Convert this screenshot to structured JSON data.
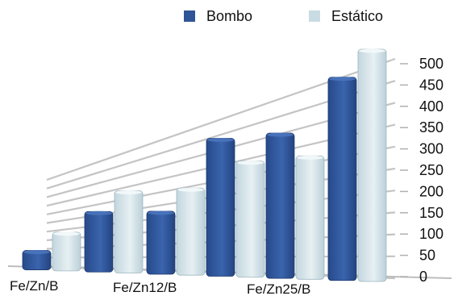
{
  "chart_data": {
    "type": "bar",
    "categories": [
      "Fe/Zn/B",
      "",
      "Fe/Zn12/B",
      "",
      "Fe/Zn25/B",
      ""
    ],
    "series": [
      {
        "name": "Bombo",
        "color": "#2f5597",
        "values": [
          40,
          125,
          130,
          285,
          300,
          420
        ]
      },
      {
        "name": "Estático",
        "color": "#c9dce3",
        "values": [
          80,
          170,
          180,
          240,
          255,
          480
        ]
      }
    ],
    "ylim": [
      0,
      500
    ],
    "yticks": [
      0,
      50,
      100,
      150,
      200,
      250,
      300,
      350,
      400,
      450,
      500
    ],
    "grid": true,
    "legend_position": "top",
    "perspective": "3d"
  }
}
